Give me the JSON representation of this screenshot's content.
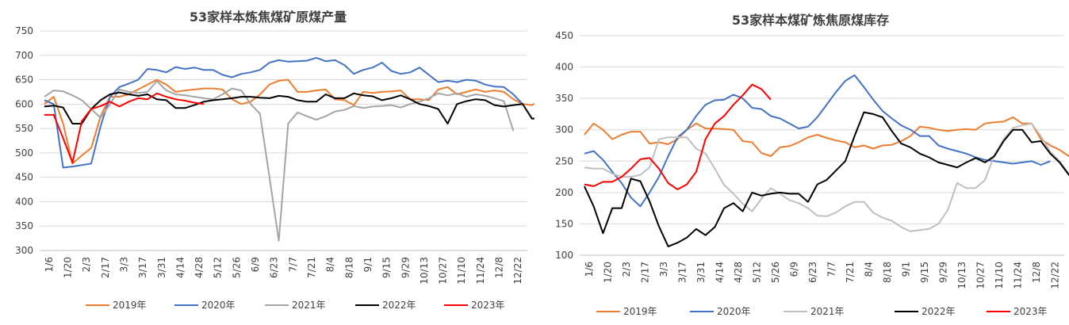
{
  "chart_data": [
    {
      "type": "line",
      "title": "53家样本炼焦煤矿原煤产量",
      "ylim": [
        300,
        750
      ],
      "yticks": [
        300,
        350,
        400,
        450,
        500,
        550,
        600,
        650,
        700,
        750
      ],
      "xticklabels": [
        "1/6",
        "1/20",
        "2/3",
        "2/17",
        "3/3",
        "3/17",
        "3/31",
        "4/14",
        "4/28",
        "5/12",
        "5/26",
        "6/9",
        "6/23",
        "7/7",
        "7/21",
        "8/4",
        "8/18",
        "9/1",
        "9/15",
        "9/29",
        "10/13",
        "10/27",
        "11/10",
        "11/24",
        "12/8",
        "12/22"
      ],
      "colors": {
        "2019年": "#ed7d31",
        "2020年": "#4472c4",
        "2021年": "#a5a5a5",
        "2022年": "#000000",
        "2023年": "#ff0000"
      },
      "series": [
        {
          "name": "2019年",
          "values": [
            600,
            615,
            560,
            478,
            495,
            510,
            575,
            615,
            615,
            620,
            630,
            640,
            650,
            640,
            625,
            628,
            630,
            632,
            632,
            630,
            610,
            600,
            605,
            620,
            640,
            648,
            650,
            625,
            625,
            628,
            630,
            610,
            608,
            598,
            625,
            623,
            625,
            626,
            628,
            610,
            610,
            608,
            630,
            635,
            620,
            625,
            630,
            625,
            628,
            625,
            610,
            600,
            598,
            610
          ]
        },
        {
          "name": "2020年",
          "values": [
            608,
            600,
            470,
            472,
            475,
            478,
            555,
            615,
            635,
            642,
            650,
            672,
            670,
            665,
            676,
            672,
            675,
            670,
            670,
            660,
            655,
            662,
            665,
            670,
            685,
            690,
            687,
            688,
            689,
            695,
            688,
            690,
            680,
            662,
            670,
            675,
            685,
            668,
            662,
            665,
            675,
            660,
            645,
            648,
            645,
            650,
            648,
            640,
            636,
            635,
            620,
            600
          ]
        },
        {
          "name": "2021年",
          "values": [
            615,
            628,
            626,
            618,
            608,
            590,
            572,
            600,
            630,
            625,
            623,
            625,
            647,
            628,
            620,
            618,
            615,
            612,
            610,
            620,
            632,
            628,
            600,
            580,
            450,
            320,
            560,
            583,
            575,
            568,
            575,
            585,
            588,
            596,
            592,
            595,
            596,
            598,
            593,
            600,
            605,
            612,
            622,
            618,
            622,
            615,
            620,
            617,
            612,
            606,
            545
          ]
        },
        {
          "name": "2022年",
          "values": [
            595,
            597,
            593,
            560,
            560,
            590,
            608,
            620,
            624,
            620,
            617,
            620,
            610,
            608,
            592,
            592,
            598,
            605,
            608,
            610,
            612,
            615,
            615,
            613,
            612,
            617,
            615,
            608,
            605,
            605,
            620,
            612,
            612,
            622,
            618,
            616,
            608,
            612,
            618,
            610,
            600,
            596,
            590,
            560,
            600,
            606,
            610,
            608,
            598,
            595,
            598,
            600,
            570,
            572
          ]
        },
        {
          "name": "2023年",
          "values": [
            578,
            578,
            530,
            480,
            565,
            590,
            596,
            605,
            595,
            605,
            612,
            610,
            622,
            615,
            610,
            607,
            603,
            600
          ]
        }
      ],
      "legend_position": "bottom"
    },
    {
      "type": "line",
      "title": "53家样本煤矿炼焦原煤库存",
      "ylim": [
        100,
        450
      ],
      "yticks": [
        100,
        150,
        200,
        250,
        300,
        350,
        400,
        450
      ],
      "xticklabels": [
        "1/6",
        "1/20",
        "2/3",
        "2/17",
        "3/3",
        "3/17",
        "3/31",
        "4/14",
        "4/28",
        "5/12",
        "5/26",
        "6/9",
        "6/23",
        "7/7",
        "7/21",
        "8/4",
        "8/18",
        "9/1",
        "9/15",
        "9/29",
        "10/13",
        "10/27",
        "11/10",
        "11/24",
        "12/8",
        "12/22"
      ],
      "colors": {
        "2019年": "#ed7d31",
        "2020年": "#4472c4",
        "2021年": "#bfbfbf",
        "2022年": "#000000",
        "2023年": "#ff0000"
      },
      "series": [
        {
          "name": "2019年",
          "values": [
            292,
            310,
            300,
            285,
            292,
            297,
            297,
            278,
            280,
            277,
            285,
            300,
            310,
            302,
            302,
            301,
            300,
            282,
            280,
            263,
            258,
            272,
            274,
            280,
            288,
            292,
            287,
            283,
            280,
            272,
            275,
            270,
            275,
            276,
            282,
            290,
            305,
            303,
            300,
            298,
            300,
            301,
            300,
            310,
            312,
            313,
            320,
            310,
            310,
            285,
            275,
            268,
            258,
            250
          ]
        },
        {
          "name": "2020年",
          "values": [
            262,
            266,
            252,
            233,
            215,
            192,
            178,
            200,
            225,
            258,
            288,
            300,
            322,
            340,
            347,
            348,
            356,
            350,
            335,
            333,
            322,
            318,
            310,
            302,
            305,
            320,
            340,
            360,
            378,
            387,
            368,
            348,
            330,
            318,
            307,
            300,
            290,
            290,
            275,
            270,
            266,
            262,
            256,
            252,
            250,
            248,
            246,
            248,
            250,
            244,
            250
          ]
        },
        {
          "name": "2021年",
          "values": [
            240,
            238,
            238,
            230,
            225,
            225,
            228,
            240,
            285,
            288,
            288,
            288,
            270,
            262,
            238,
            212,
            198,
            182,
            170,
            190,
            207,
            198,
            188,
            183,
            175,
            163,
            162,
            168,
            178,
            185,
            185,
            168,
            160,
            155,
            145,
            138,
            140,
            142,
            150,
            172,
            215,
            207,
            207,
            220,
            260,
            285,
            303,
            307,
            310,
            290,
            265,
            250,
            230,
            220
          ]
        },
        {
          "name": "2022年",
          "values": [
            210,
            178,
            135,
            175,
            175,
            222,
            218,
            186,
            146,
            114,
            120,
            128,
            142,
            132,
            145,
            175,
            183,
            170,
            200,
            195,
            198,
            200,
            198,
            198,
            185,
            213,
            220,
            235,
            250,
            290,
            328,
            325,
            320,
            298,
            278,
            272,
            262,
            256,
            248,
            244,
            240,
            248,
            255,
            248,
            258,
            282,
            300,
            300,
            280,
            282,
            262,
            248,
            228,
            220
          ]
        },
        {
          "name": "2023年",
          "values": [
            213,
            210,
            217,
            217,
            225,
            238,
            253,
            255,
            238,
            215,
            205,
            213,
            233,
            285,
            310,
            322,
            340,
            355,
            372,
            365,
            348
          ]
        }
      ],
      "legend_position": "bottom"
    }
  ]
}
